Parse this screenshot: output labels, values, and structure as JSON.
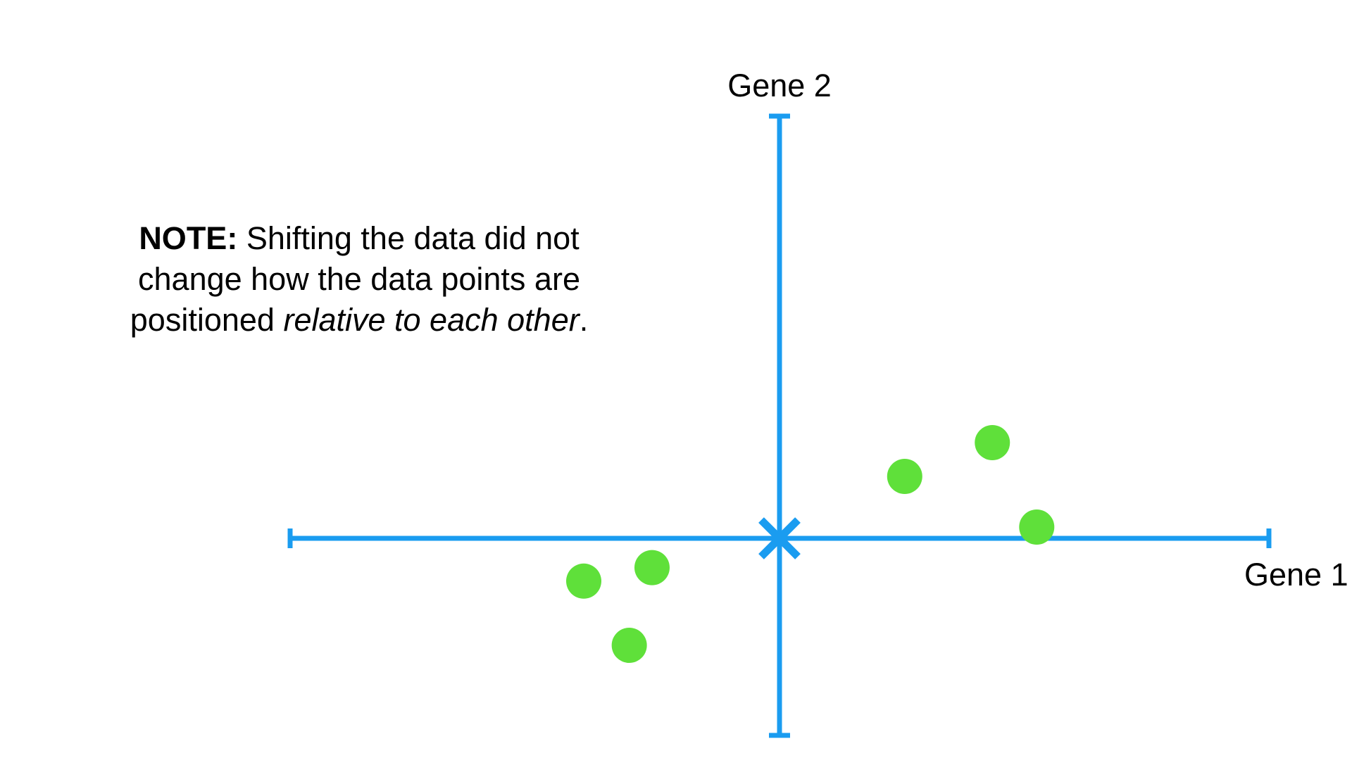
{
  "colors": {
    "axis": "#1a9cf0",
    "point": "#5fe03a",
    "text": "#000000",
    "background": "#ffffff"
  },
  "note": {
    "label": "NOTE:",
    "text_1": " Shifting the data did not change how the data points are positioned ",
    "emphasis": "relative to each other",
    "text_2": "."
  },
  "chart_data": {
    "type": "scatter",
    "xlabel": "Gene 1",
    "ylabel": "Gene 2",
    "xlim": [
      -4.3,
      4.3
    ],
    "ylim": [
      -1.75,
      3.75
    ],
    "grid": false,
    "origin_marker": "X",
    "points": [
      {
        "x": 1.1,
        "y": 0.55
      },
      {
        "x": 1.87,
        "y": 0.85
      },
      {
        "x": 2.26,
        "y": 0.1
      },
      {
        "x": -1.72,
        "y": -0.38
      },
      {
        "x": -1.12,
        "y": -0.26
      },
      {
        "x": -1.32,
        "y": -0.95
      }
    ]
  }
}
